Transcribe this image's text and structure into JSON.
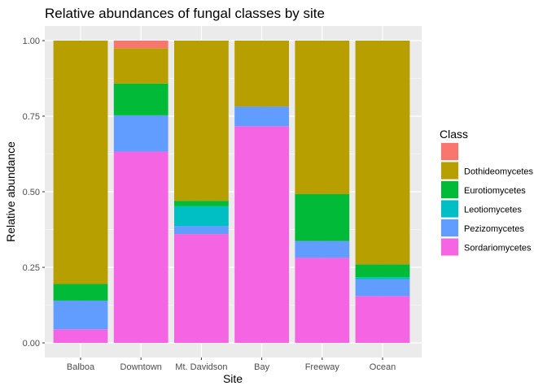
{
  "chart_data": {
    "type": "bar",
    "stacked": true,
    "title": "Relative abundances of fungal classes by site",
    "xlabel": "Site",
    "ylabel": "Relative abundance",
    "ylim": [
      0,
      1
    ],
    "yticks": [
      "0.00",
      "0.25",
      "0.50",
      "0.75",
      "1.00"
    ],
    "ytick_values": [
      0,
      0.25,
      0.5,
      0.75,
      1.0
    ],
    "categories": [
      "Balboa",
      "Downtown",
      "Mt. Davidson",
      "Bay",
      "Freeway",
      "Ocean"
    ],
    "legend_title": "Class",
    "legend_position": "right",
    "series": [
      {
        "name": "",
        "color": "#F8766D",
        "values": [
          0,
          0.025,
          0,
          0,
          0,
          0
        ]
      },
      {
        "name": "Dothideomycetes",
        "color": "#B79F00",
        "values": [
          0.805,
          0.117,
          0.53,
          0.218,
          0.508,
          0.74
        ]
      },
      {
        "name": "Eurotiomycetes",
        "color": "#00BA38",
        "values": [
          0.055,
          0.105,
          0.018,
          0,
          0.155,
          0.043
        ]
      },
      {
        "name": "Leotiomycetes",
        "color": "#00BFC4",
        "values": [
          0,
          0,
          0.065,
          0,
          0,
          0.007
        ]
      },
      {
        "name": "Pezizomycetes",
        "color": "#619CFF",
        "values": [
          0.095,
          0.12,
          0.027,
          0.065,
          0.055,
          0.055
        ]
      },
      {
        "name": "Sordariomycetes",
        "color": "#F564E3",
        "values": [
          0.045,
          0.633,
          0.36,
          0.717,
          0.282,
          0.155
        ]
      }
    ]
  }
}
